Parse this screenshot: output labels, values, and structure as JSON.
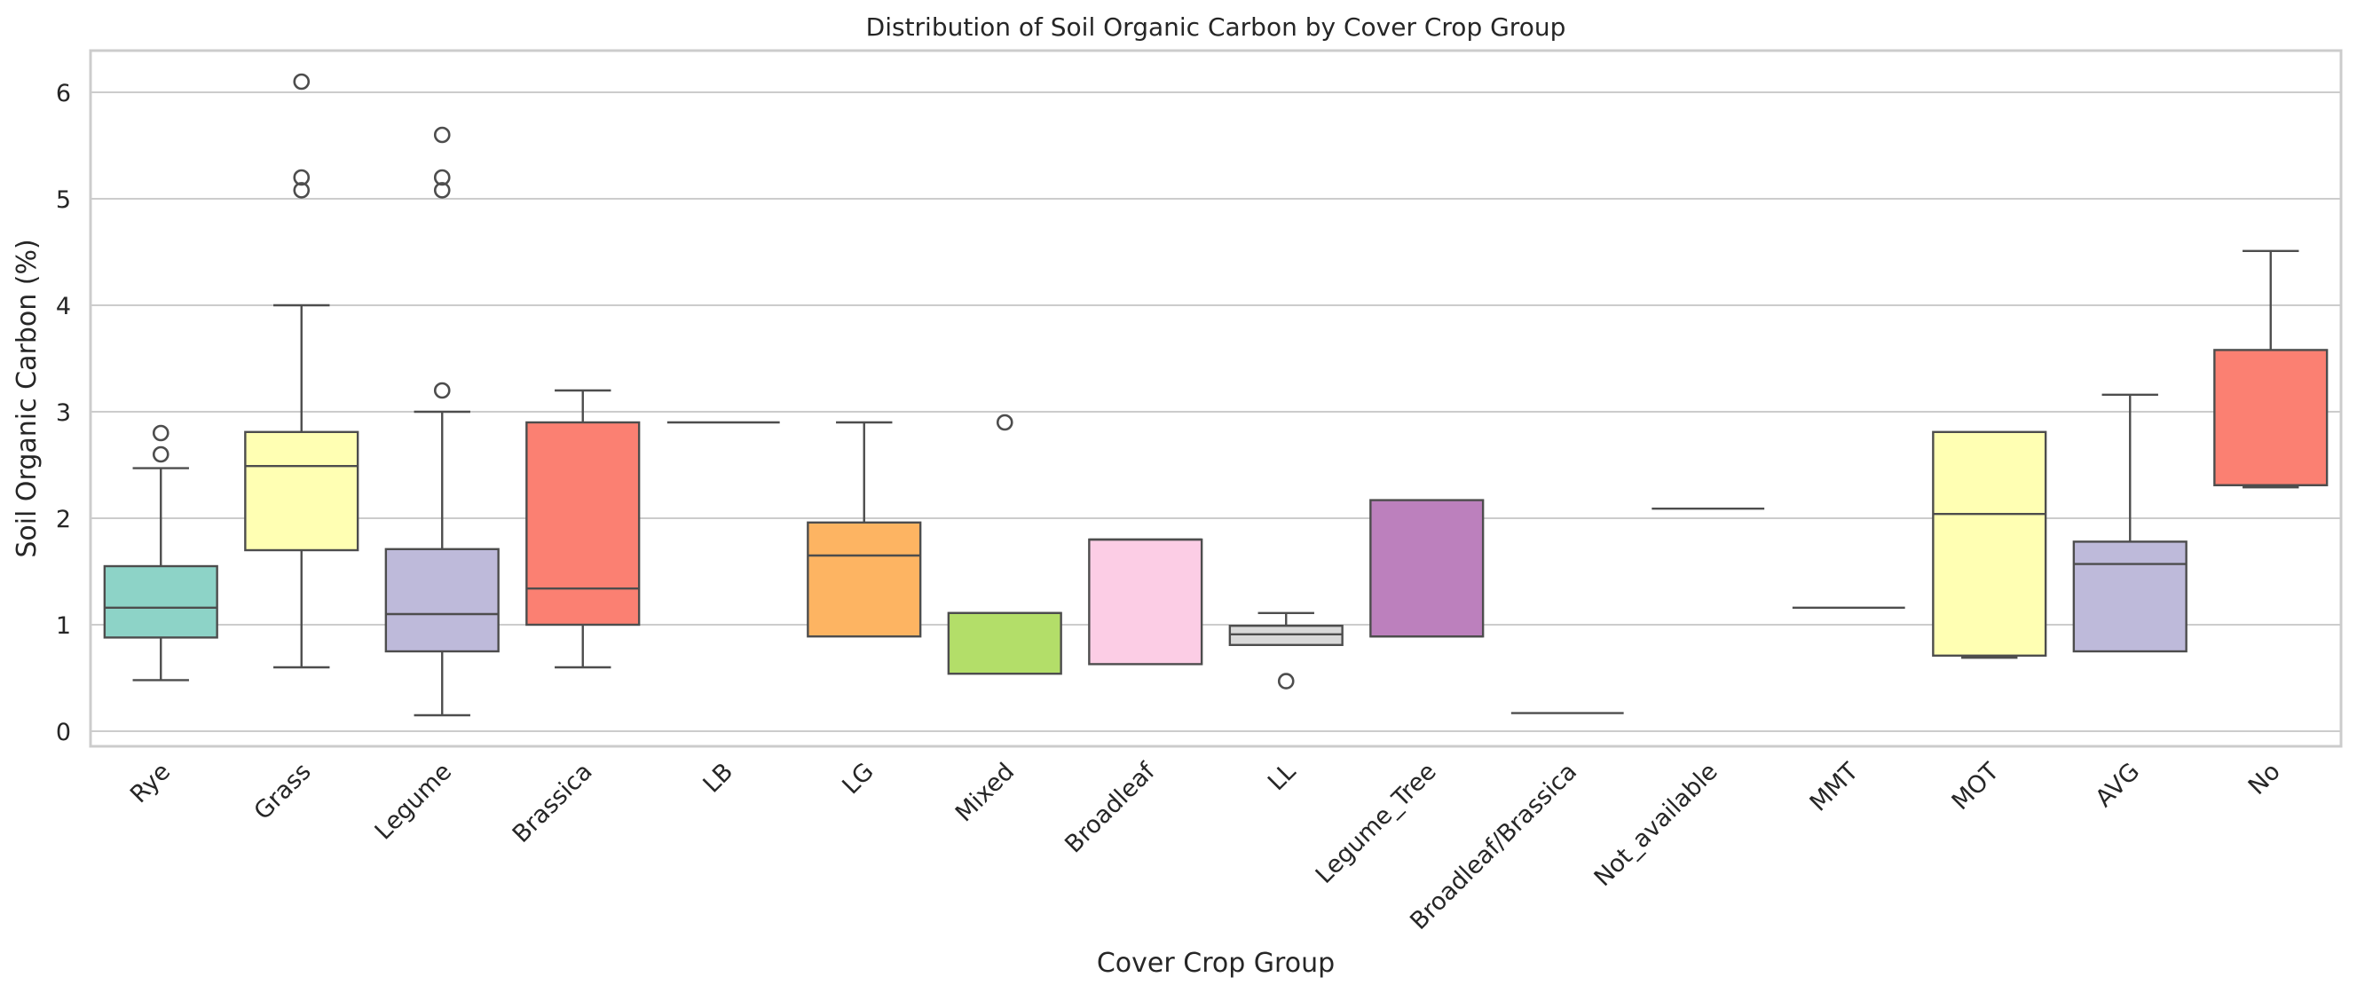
{
  "chart_data": {
    "type": "box",
    "title": "Distribution of Soil Organic Carbon by Cover Crop Group",
    "xlabel": "Cover Crop Group",
    "ylabel": "Soil Organic Carbon (%)",
    "ylim": [
      -0.15,
      6.4
    ],
    "yticks": [
      0,
      1,
      2,
      3,
      4,
      5,
      6
    ],
    "grid": "horizontal",
    "legend": "none",
    "categories": [
      "Rye",
      "Grass",
      "Legume",
      "Brassica",
      "LB",
      "LG",
      "Mixed",
      "Broadleaf",
      "LL",
      "Legume_Tree",
      "Broadleaf/Brassica",
      "Not_available",
      "MMT",
      "MOT",
      "AVG",
      "No"
    ],
    "boxes": [
      {
        "group": "Rye",
        "whisker_low": 0.48,
        "q1": 0.88,
        "median": 1.16,
        "q3": 1.55,
        "whisker_high": 2.47,
        "outliers": [
          2.6,
          2.8
        ],
        "color": "#8dd3c7"
      },
      {
        "group": "Grass",
        "whisker_low": 0.6,
        "q1": 1.7,
        "median": 2.49,
        "q3": 2.81,
        "whisker_high": 4.0,
        "outliers": [
          5.08,
          5.2,
          6.1
        ],
        "color": "#ffffb3"
      },
      {
        "group": "Legume",
        "whisker_low": 0.15,
        "q1": 0.75,
        "median": 1.1,
        "q3": 1.71,
        "whisker_high": 3.0,
        "outliers": [
          3.2,
          5.08,
          5.2,
          5.6
        ],
        "color": "#bebada"
      },
      {
        "group": "Brassica",
        "whisker_low": 0.6,
        "q1": 1.0,
        "median": 1.34,
        "q3": 2.9,
        "whisker_high": 3.2,
        "outliers": [],
        "color": "#fb8072"
      },
      {
        "group": "LB",
        "whisker_low": 2.9,
        "q1": 2.9,
        "median": 2.9,
        "q3": 2.9,
        "whisker_high": 2.9,
        "outliers": [],
        "color": "#80b1d3"
      },
      {
        "group": "LG",
        "whisker_low": 0.89,
        "q1": 0.89,
        "median": 1.65,
        "q3": 1.96,
        "whisker_high": 2.9,
        "outliers": [],
        "color": "#fdb462"
      },
      {
        "group": "Mixed",
        "whisker_low": 0.54,
        "q1": 0.54,
        "median": 1.11,
        "q3": 1.11,
        "whisker_high": 1.11,
        "outliers": [
          2.9
        ],
        "color": "#b3de69"
      },
      {
        "group": "Broadleaf",
        "whisker_low": 0.63,
        "q1": 0.63,
        "median": 1.8,
        "q3": 1.8,
        "whisker_high": 1.8,
        "outliers": [],
        "color": "#fccde5"
      },
      {
        "group": "LL",
        "whisker_low": 0.81,
        "q1": 0.81,
        "median": 0.91,
        "q3": 0.99,
        "whisker_high": 1.11,
        "outliers": [
          0.47
        ],
        "color": "#d9d9d9"
      },
      {
        "group": "Legume_Tree",
        "whisker_low": 0.89,
        "q1": 0.89,
        "median": 0.89,
        "q3": 2.17,
        "whisker_high": 2.17,
        "outliers": [],
        "color": "#bc80bd"
      },
      {
        "group": "Broadleaf/Brassica",
        "whisker_low": 0.17,
        "q1": 0.17,
        "median": 0.17,
        "q3": 0.17,
        "whisker_high": 0.17,
        "outliers": [],
        "color": "#ccebc5"
      },
      {
        "group": "Not_available",
        "whisker_low": 2.09,
        "q1": 2.09,
        "median": 2.09,
        "q3": 2.09,
        "whisker_high": 2.09,
        "outliers": [],
        "color": "#ffed6f"
      },
      {
        "group": "MMT",
        "whisker_low": 1.16,
        "q1": 1.16,
        "median": 1.16,
        "q3": 1.16,
        "whisker_high": 1.16,
        "outliers": [],
        "color": "#8dd3c7"
      },
      {
        "group": "MOT",
        "whisker_low": 0.69,
        "q1": 0.71,
        "median": 2.04,
        "q3": 2.81,
        "whisker_high": 2.81,
        "outliers": [],
        "color": "#ffffb3"
      },
      {
        "group": "AVG",
        "whisker_low": 0.75,
        "q1": 0.75,
        "median": 1.57,
        "q3": 1.78,
        "whisker_high": 3.16,
        "outliers": [],
        "color": "#bebada"
      },
      {
        "group": "No",
        "whisker_low": 2.29,
        "q1": 2.31,
        "median": 2.31,
        "q3": 3.58,
        "whisker_high": 4.51,
        "outliers": [],
        "color": "#fb8072"
      }
    ]
  }
}
